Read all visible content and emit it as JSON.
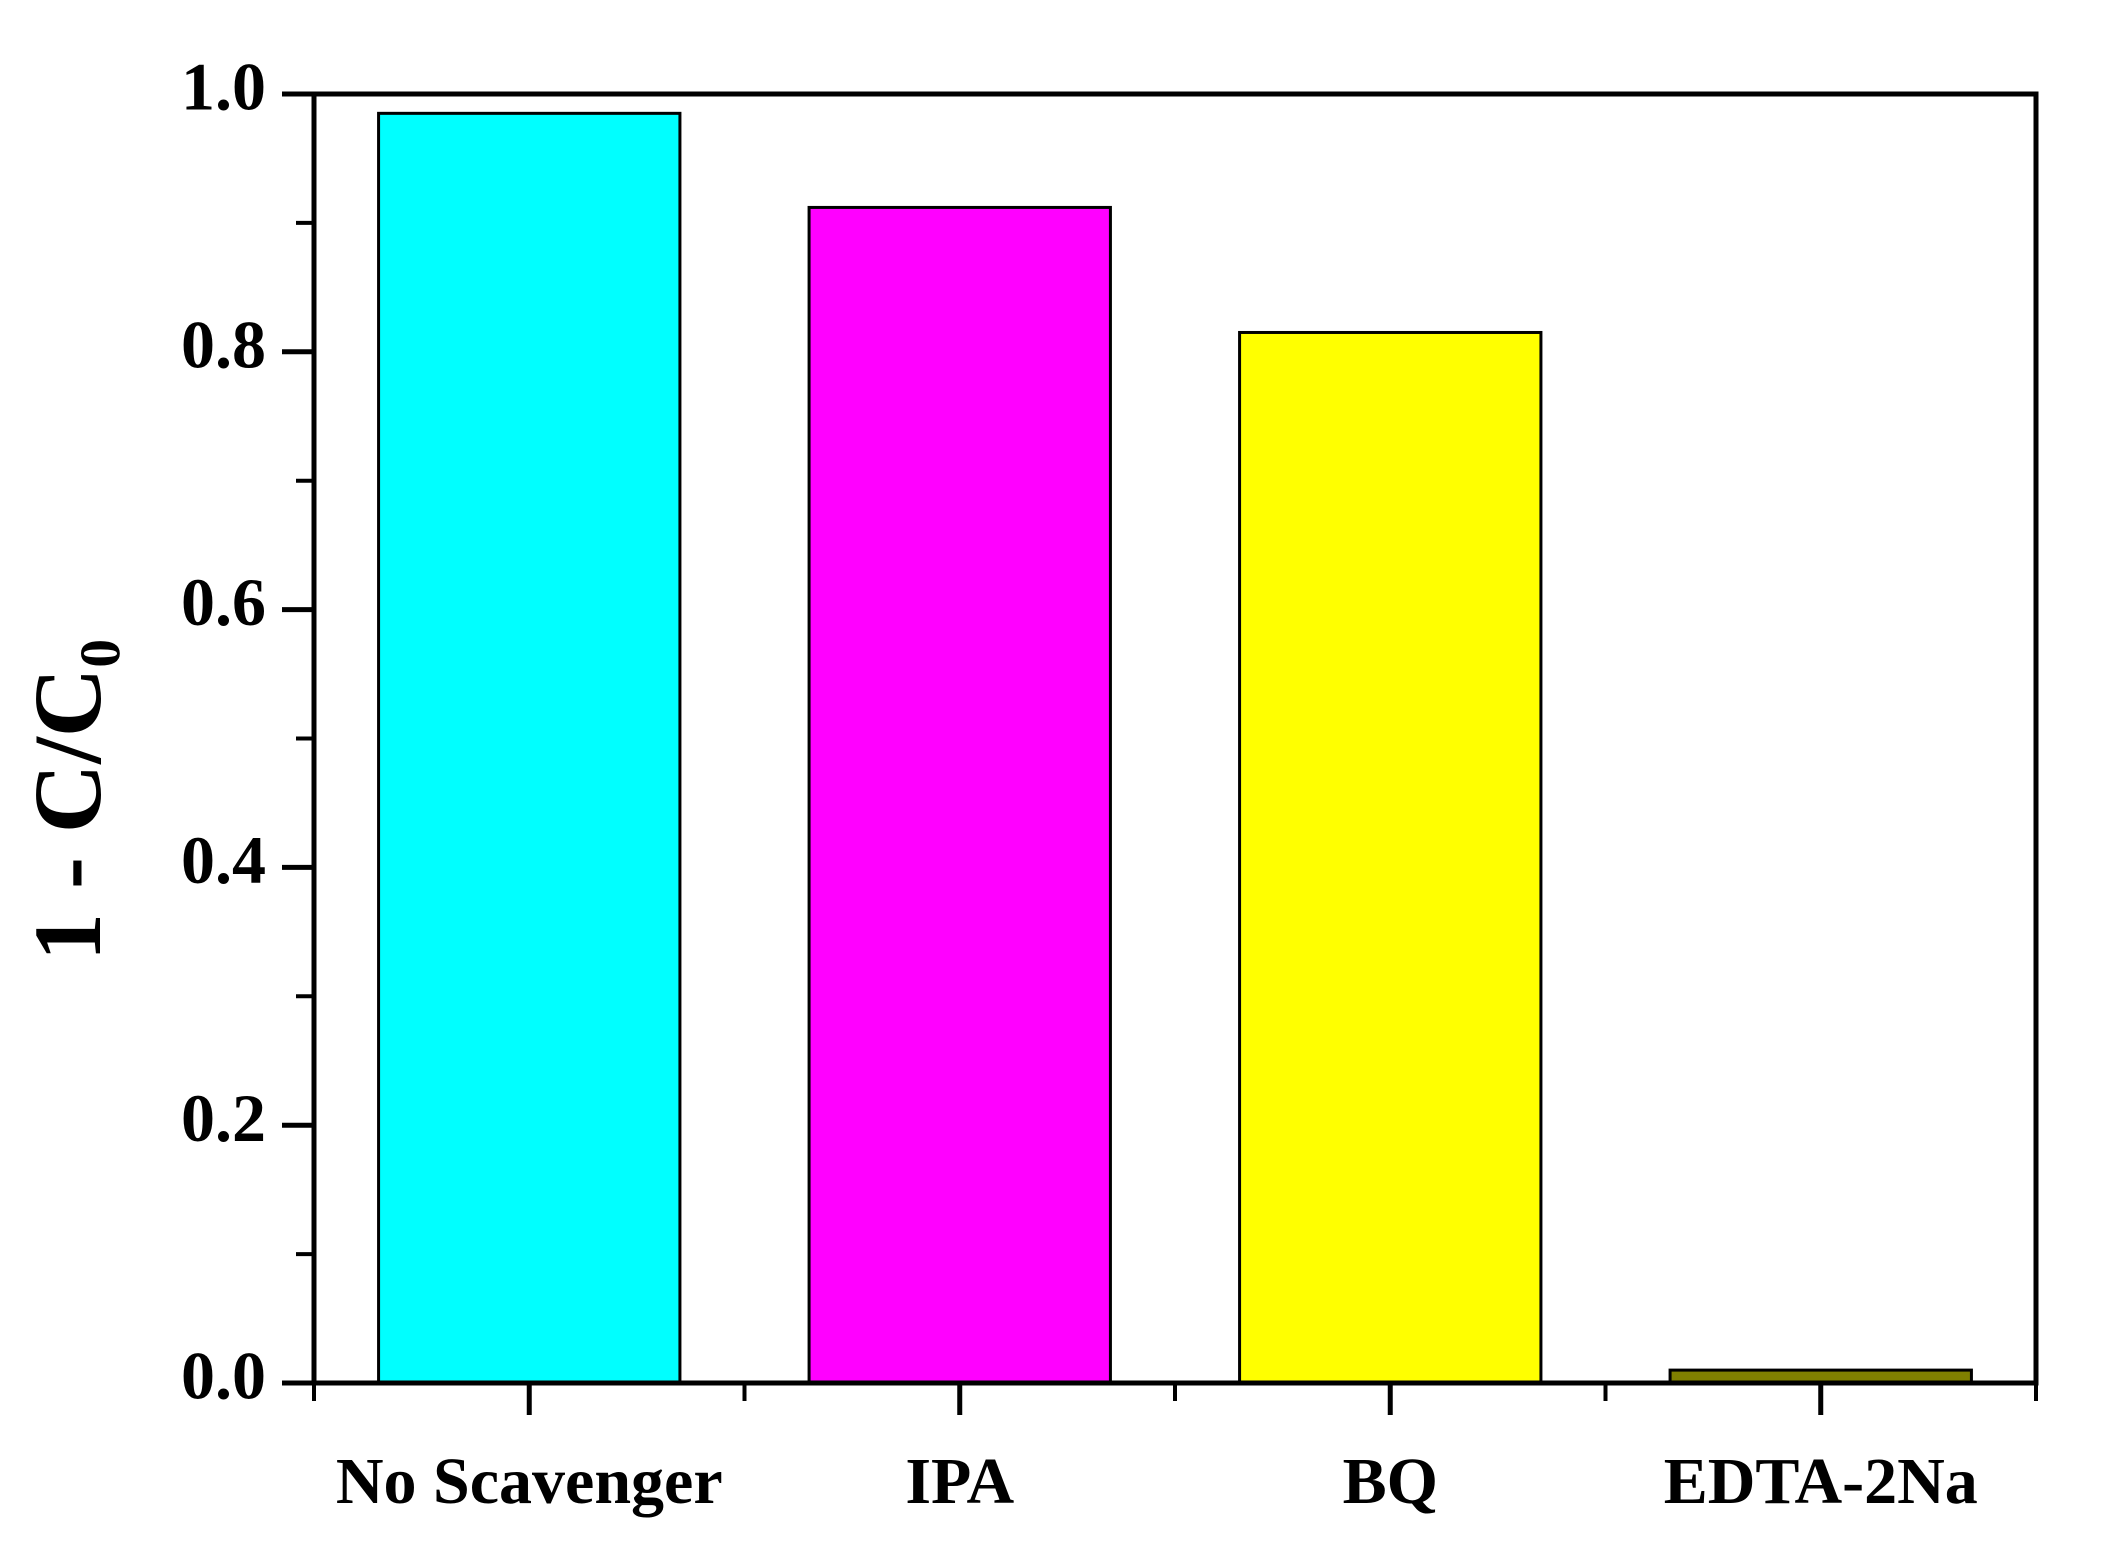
{
  "chart_data": {
    "type": "bar",
    "y_label": "1 - C/C₀",
    "categories": [
      "No Scavenger",
      "IPA",
      "BQ",
      "EDTA-2Na"
    ],
    "values": [
      0.985,
      0.912,
      0.815,
      0.01
    ],
    "colors": [
      "#00ffff",
      "#ff00ff",
      "#ffff00",
      "#808000"
    ],
    "ylim": [
      0,
      1
    ],
    "yticks": [
      {
        "value": 0,
        "label": "0.0"
      },
      0.2,
      0.4,
      0.6,
      0.8,
      {
        "value": 1,
        "label": "1.0"
      }
    ],
    "yticks_minor": [
      0.1,
      0.3,
      0.5,
      0.7,
      0.9
    ],
    "grid": false
  }
}
